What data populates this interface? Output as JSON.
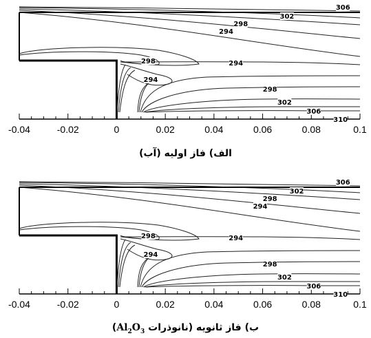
{
  "chart_data": [
    {
      "type": "contour",
      "caption": "الف) فاز اولیه (آب)",
      "xlim": [
        -0.04,
        0.1
      ],
      "x_ticks": [
        "-0.04",
        "-0.02",
        "0",
        "0.02",
        "0.04",
        "0.06",
        "0.08",
        "0.1"
      ],
      "contour_labels": [
        {
          "value": "306",
          "x": 0.093
        },
        {
          "value": "302",
          "x": 0.07
        },
        {
          "value": "298",
          "x": 0.051
        },
        {
          "value": "294",
          "x": 0.045
        },
        {
          "value": "298",
          "x": 0.013
        },
        {
          "value": "294",
          "x": 0.049
        },
        {
          "value": "294",
          "x": 0.014
        },
        {
          "value": "298",
          "x": 0.063
        },
        {
          "value": "302",
          "x": 0.069
        },
        {
          "value": "306",
          "x": 0.081
        },
        {
          "value": "310",
          "x": 0.092
        }
      ]
    },
    {
      "type": "contour",
      "caption": "ب) فاز ثانویه (نانوذرات Al2O3)",
      "xlim": [
        -0.04,
        0.1
      ],
      "x_ticks": [
        "-0.04",
        "-0.02",
        "0",
        "0.02",
        "0.04",
        "0.06",
        "0.08",
        "0.1"
      ],
      "contour_labels": [
        {
          "value": "306",
          "x": 0.093
        },
        {
          "value": "302",
          "x": 0.074
        },
        {
          "value": "298",
          "x": 0.063
        },
        {
          "value": "294",
          "x": 0.059
        },
        {
          "value": "298",
          "x": 0.013
        },
        {
          "value": "294",
          "x": 0.049
        },
        {
          "value": "294",
          "x": 0.014
        },
        {
          "value": "298",
          "x": 0.063
        },
        {
          "value": "302",
          "x": 0.069
        },
        {
          "value": "306",
          "x": 0.081
        },
        {
          "value": "310",
          "x": 0.092
        }
      ]
    }
  ]
}
